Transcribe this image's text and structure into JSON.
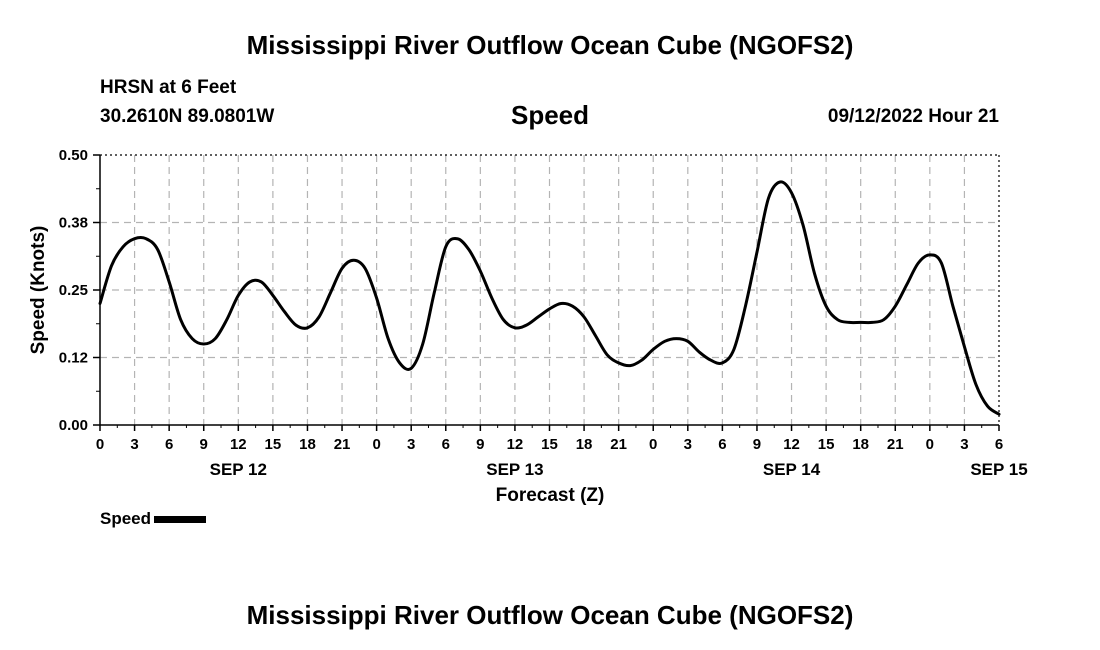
{
  "header": {
    "main_title": "Mississippi River Outflow Ocean Cube (NGOFS2)",
    "station": "HRSN at 6 Feet",
    "coordinates": "30.2610N  89.0801W",
    "subtitle": "Speed",
    "datetime": "09/12/2022 Hour 21"
  },
  "footer": {
    "title": "Mississippi River Outflow Ocean Cube (NGOFS2)"
  },
  "legend": {
    "label": "Speed",
    "color": "#000000"
  },
  "chart_data": {
    "type": "line",
    "title": "Speed",
    "xlabel": "Forecast (Z)",
    "ylabel": "Speed (Knots)",
    "x_unit": "hours from Sep 12 00Z",
    "xlim": [
      0,
      78
    ],
    "ylim": [
      0,
      0.5
    ],
    "grid": true,
    "legend_position": "bottom-left",
    "y_ticks": [
      "0.00",
      "0.12",
      "0.25",
      "0.38",
      "0.50"
    ],
    "y_tick_values": [
      0,
      0.125,
      0.25,
      0.375,
      0.5
    ],
    "x_tick_labels": [
      "0",
      "3",
      "6",
      "9",
      "12",
      "15",
      "18",
      "21",
      "0",
      "3",
      "6",
      "9",
      "12",
      "15",
      "18",
      "21",
      "0",
      "3",
      "6",
      "9",
      "12",
      "15",
      "18",
      "21",
      "0",
      "3",
      "6"
    ],
    "x_tick_values": [
      0,
      3,
      6,
      9,
      12,
      15,
      18,
      21,
      24,
      27,
      30,
      33,
      36,
      39,
      42,
      45,
      48,
      51,
      54,
      57,
      60,
      63,
      66,
      69,
      72,
      75,
      78
    ],
    "date_labels": [
      {
        "label": "SEP 12",
        "x": 12
      },
      {
        "label": "SEP 13",
        "x": 36
      },
      {
        "label": "SEP 14",
        "x": 60
      },
      {
        "label": "SEP 15",
        "x": 78
      }
    ],
    "series": [
      {
        "name": "Speed",
        "color": "#000000",
        "x": [
          0,
          1,
          2,
          3,
          4,
          5,
          6,
          7,
          8,
          9,
          10,
          11,
          12,
          13,
          14,
          15,
          16,
          17,
          18,
          19,
          20,
          21,
          22,
          23,
          24,
          25,
          26,
          27,
          28,
          29,
          30,
          31,
          32,
          33,
          34,
          35,
          36,
          37,
          38,
          39,
          40,
          41,
          42,
          43,
          44,
          45,
          46,
          47,
          48,
          49,
          50,
          51,
          52,
          53,
          54,
          55,
          56,
          57,
          58,
          59,
          60,
          61,
          62,
          63,
          64,
          65,
          66,
          67,
          68,
          69,
          70,
          71,
          72,
          73,
          74,
          75,
          76,
          77,
          78
        ],
        "y": [
          0.225,
          0.295,
          0.33,
          0.345,
          0.345,
          0.325,
          0.265,
          0.195,
          0.16,
          0.15,
          0.16,
          0.195,
          0.24,
          0.265,
          0.265,
          0.24,
          0.21,
          0.185,
          0.18,
          0.2,
          0.245,
          0.29,
          0.305,
          0.29,
          0.235,
          0.16,
          0.115,
          0.105,
          0.15,
          0.245,
          0.33,
          0.345,
          0.325,
          0.285,
          0.235,
          0.195,
          0.18,
          0.185,
          0.2,
          0.215,
          0.225,
          0.22,
          0.2,
          0.165,
          0.13,
          0.115,
          0.11,
          0.12,
          0.14,
          0.155,
          0.16,
          0.155,
          0.135,
          0.12,
          0.115,
          0.14,
          0.22,
          0.32,
          0.42,
          0.45,
          0.43,
          0.37,
          0.28,
          0.22,
          0.195,
          0.19,
          0.19,
          0.19,
          0.195,
          0.22,
          0.26,
          0.3,
          0.315,
          0.3,
          0.22,
          0.145,
          0.075,
          0.035,
          0.02
        ]
      }
    ]
  }
}
